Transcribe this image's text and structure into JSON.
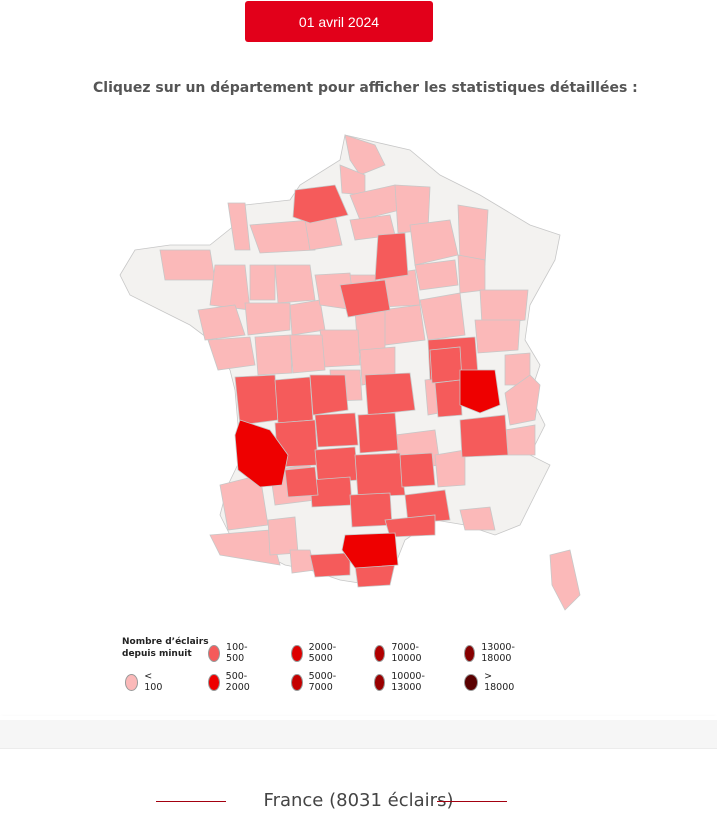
{
  "header": {
    "date_label": "01 avril 2024"
  },
  "instruction": "Cliquez sur un département pour afficher les statistiques détaillées :",
  "legend": {
    "title_line1": "Nombre d’éclairs",
    "title_line2": "depuis minuit",
    "items": [
      {
        "label": "< 100",
        "color": "#fbb9b9"
      },
      {
        "label": "100-500",
        "color": "#f55b5b"
      },
      {
        "label": "500-2000",
        "color": "#ee0000"
      },
      {
        "label": "2000-5000",
        "color": "#dd0000"
      },
      {
        "label": "5000-7000",
        "color": "#c40000"
      },
      {
        "label": "7000-10000",
        "color": "#b00000"
      },
      {
        "label": "10000-13000",
        "color": "#9a0000"
      },
      {
        "label": "13000-18000",
        "color": "#860000"
      },
      {
        "label": "> 18000",
        "color": "#5a0000"
      }
    ]
  },
  "colors": {
    "none": "#f3f2f0",
    "low": "#fbb9b9",
    "mid": "#f55b5b",
    "high": "#ee0000",
    "brand": "#e2001a"
  },
  "footer": {
    "title": "France (8031 éclairs)"
  }
}
